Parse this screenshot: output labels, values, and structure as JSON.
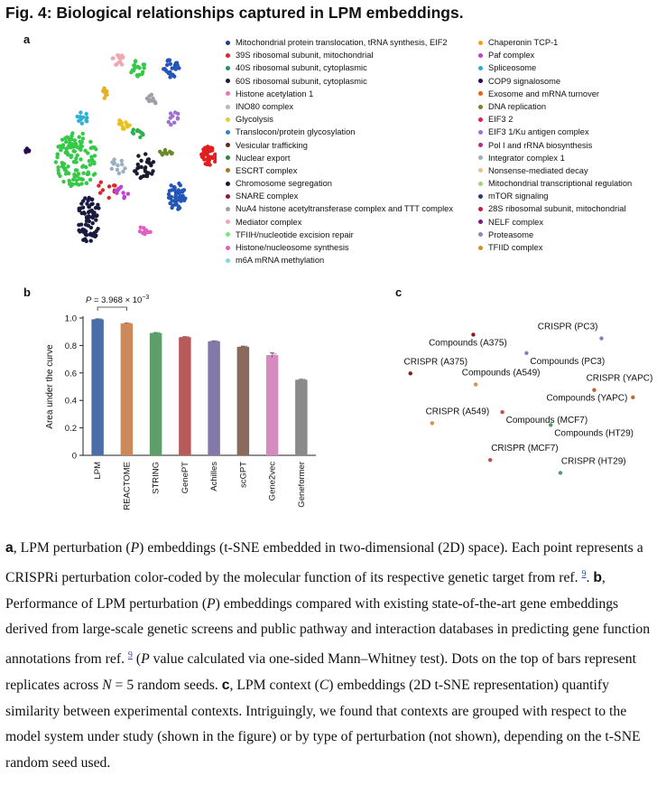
{
  "figure": {
    "title": "Fig. 4: Biological relationships captured in LPM embeddings."
  },
  "panel_labels": {
    "a": "a",
    "b": "b",
    "c": "c"
  },
  "legend_a": {
    "left": [
      {
        "label": "Mitochondrial protein translocation, tRNA synthesis, EIF2",
        "color": "#1f3d8a"
      },
      {
        "label": "39S ribosomal subunit, mitochondrial",
        "color": "#d8282a"
      },
      {
        "label": "40S ribosomal subunit, cytoplasmic",
        "color": "#2f8f5a"
      },
      {
        "label": "60S ribosomal subunit, cytoplasmic",
        "color": "#1a1a40"
      },
      {
        "label": "Histone acetylation 1",
        "color": "#e879a8"
      },
      {
        "label": "INO80 complex",
        "color": "#b8b8b8"
      },
      {
        "label": "Glycolysis",
        "color": "#d9d23c"
      },
      {
        "label": "Translocon/protein glycosylation",
        "color": "#3b7fc4"
      },
      {
        "label": "Vesicular trafficking",
        "color": "#5a2e1a"
      },
      {
        "label": "Nuclear export",
        "color": "#2a8a3c"
      },
      {
        "label": "ESCRT complex",
        "color": "#a07a2a"
      },
      {
        "label": "Chromosome segregation",
        "color": "#1b1b30"
      },
      {
        "label": "SNARE complex",
        "color": "#8a1a3a"
      },
      {
        "label": "NuA4 histone acetyltransferase complex and TTT complex",
        "color": "#9ea0a6"
      },
      {
        "label": "Mediator complex",
        "color": "#f0a8b0"
      },
      {
        "label": "TFIIH/nucleotide excision repair",
        "color": "#7fe07f"
      },
      {
        "label": "Histone/nucleosome synthesis",
        "color": "#e060c0"
      },
      {
        "label": "m6A mRNA methylation",
        "color": "#7fd8e8"
      }
    ],
    "right": [
      {
        "label": "Chaperonin TCP-1",
        "color": "#f2a020"
      },
      {
        "label": "Paf complex",
        "color": "#c040d0"
      },
      {
        "label": "Spliceosome",
        "color": "#2ab0c8"
      },
      {
        "label": "COP9 signalosome",
        "color": "#2a0a50"
      },
      {
        "label": "Exosome and mRNA turnover",
        "color": "#e8601a"
      },
      {
        "label": "DNA replication",
        "color": "#6a8a2a"
      },
      {
        "label": "EIF3 2",
        "color": "#e02050"
      },
      {
        "label": "EIF3 1/Ku antigen complex",
        "color": "#a070d0"
      },
      {
        "label": "Pol I and rRNA biosynthesis",
        "color": "#b0308a"
      },
      {
        "label": "Integrator complex 1",
        "color": "#9ab0c0"
      },
      {
        "label": "Nonsense-mediated decay",
        "color": "#e8c090"
      },
      {
        "label": "Mitochondrial transcriptional regulation",
        "color": "#a0d080"
      },
      {
        "label": "mTOR signaling",
        "color": "#2a3a7a"
      },
      {
        "label": "28S ribosomal subunit, mitochondrial",
        "color": "#c02040"
      },
      {
        "label": "NELF complex",
        "color": "#7a1a8a"
      },
      {
        "label": "Proteasome",
        "color": "#8a8ac0"
      },
      {
        "label": "TFIID complex",
        "color": "#d09030"
      }
    ]
  },
  "chart_data": [
    {
      "panel": "a",
      "type": "scatter",
      "title": "",
      "xlabel": "",
      "ylabel": "",
      "clusters": [
        {
          "color": "#36c948",
          "cx": 0.29,
          "cy": 0.55,
          "rx": 0.11,
          "ry": 0.13,
          "n": 120
        },
        {
          "color": "#e02020",
          "cx": 0.96,
          "cy": 0.53,
          "rx": 0.04,
          "ry": 0.045,
          "n": 45
        },
        {
          "color": "#2456b8",
          "cx": 0.8,
          "cy": 0.72,
          "rx": 0.045,
          "ry": 0.07,
          "n": 45
        },
        {
          "color": "#1a1a40",
          "cx": 0.35,
          "cy": 0.83,
          "rx": 0.06,
          "ry": 0.11,
          "n": 70
        },
        {
          "color": "#2456b8",
          "cx": 0.77,
          "cy": 0.12,
          "rx": 0.04,
          "ry": 0.05,
          "n": 25
        },
        {
          "color": "#36c948",
          "cx": 0.6,
          "cy": 0.12,
          "rx": 0.04,
          "ry": 0.04,
          "n": 18
        },
        {
          "color": "#f0a8b0",
          "cx": 0.5,
          "cy": 0.08,
          "rx": 0.03,
          "ry": 0.04,
          "n": 15
        },
        {
          "color": "#e8b020",
          "cx": 0.43,
          "cy": 0.25,
          "rx": 0.015,
          "ry": 0.05,
          "n": 8
        },
        {
          "color": "#30b0d0",
          "cx": 0.32,
          "cy": 0.35,
          "rx": 0.03,
          "ry": 0.03,
          "n": 12
        },
        {
          "color": "#e8c020",
          "cx": 0.53,
          "cy": 0.38,
          "rx": 0.03,
          "ry": 0.03,
          "n": 14
        },
        {
          "color": "#30b050",
          "cx": 0.6,
          "cy": 0.42,
          "rx": 0.03,
          "ry": 0.03,
          "n": 10
        },
        {
          "color": "#9ea0a6",
          "cx": 0.67,
          "cy": 0.27,
          "rx": 0.03,
          "ry": 0.03,
          "n": 12
        },
        {
          "color": "#1b1b30",
          "cx": 0.63,
          "cy": 0.58,
          "rx": 0.06,
          "ry": 0.06,
          "n": 30
        },
        {
          "color": "#9ab0c0",
          "cx": 0.5,
          "cy": 0.58,
          "rx": 0.04,
          "ry": 0.04,
          "n": 12
        },
        {
          "color": "#e060c0",
          "cx": 0.63,
          "cy": 0.88,
          "rx": 0.04,
          "ry": 0.02,
          "n": 10
        },
        {
          "color": "#6a8a2a",
          "cx": 0.74,
          "cy": 0.52,
          "rx": 0.035,
          "ry": 0.02,
          "n": 10
        },
        {
          "color": "#2a0a50",
          "cx": 0.04,
          "cy": 0.51,
          "rx": 0.015,
          "ry": 0.015,
          "n": 6
        },
        {
          "color": "#d8282a",
          "cx": 0.44,
          "cy": 0.68,
          "rx": 0.05,
          "ry": 0.05,
          "n": 10
        },
        {
          "color": "#c040d0",
          "cx": 0.52,
          "cy": 0.7,
          "rx": 0.04,
          "ry": 0.03,
          "n": 10
        },
        {
          "color": "#a070d0",
          "cx": 0.78,
          "cy": 0.35,
          "rx": 0.03,
          "ry": 0.04,
          "n": 10
        }
      ]
    },
    {
      "panel": "b",
      "type": "bar",
      "title": "",
      "xlabel": "",
      "ylabel": "Area under the curve",
      "ylim": [
        0,
        1.0
      ],
      "yticks": [
        "0",
        "0.2",
        "0.4",
        "0.6",
        "0.8",
        "1.0"
      ],
      "categories": [
        "LPM",
        "REACTOME",
        "STRING",
        "GenePT",
        "Achilles",
        "scGPT",
        "Gene2vec",
        "Geneformer"
      ],
      "values": [
        0.99,
        0.96,
        0.89,
        0.86,
        0.83,
        0.79,
        0.73,
        0.55
      ],
      "errors": [
        0.004,
        0.004,
        0.004,
        0.004,
        0.004,
        0.005,
        0.015,
        0.004
      ],
      "colors": [
        "#4a6fa8",
        "#cc8a5a",
        "#5e9e6a",
        "#b85a5a",
        "#8478a8",
        "#8a6a5a",
        "#d68bc0",
        "#8a8a8a"
      ],
      "annotation": {
        "prefix": "P",
        "value": " = 3.968 × 10",
        "exponent": "−3",
        "from": "LPM",
        "to": "REACTOME"
      }
    },
    {
      "panel": "c",
      "type": "scatter",
      "title": "",
      "xlabel": "",
      "ylabel": "",
      "points": [
        {
          "label": "Compounds (A375)",
          "color": "#8a1a1a",
          "x": 0.33,
          "y": 0.12,
          "label_side": "below-left"
        },
        {
          "label": "CRISPR (PC3)",
          "color": "#8a7ac0",
          "x": 0.86,
          "y": 0.14,
          "label_side": "above-left"
        },
        {
          "label": "Compounds (PC3)",
          "color": "#8a7ac0",
          "x": 0.55,
          "y": 0.22,
          "label_side": "right"
        },
        {
          "label": "CRISPR (A375)",
          "color": "#8a1a1a",
          "x": 0.07,
          "y": 0.33,
          "label_side": "above"
        },
        {
          "label": "Compounds (A549)",
          "color": "#d8904a",
          "x": 0.34,
          "y": 0.39,
          "label_side": "above"
        },
        {
          "label": "CRISPR (YAPC)",
          "color": "#b8683a",
          "x": 0.83,
          "y": 0.42,
          "label_side": "above"
        },
        {
          "label": "Compounds (YAPC)",
          "color": "#b8683a",
          "x": 0.99,
          "y": 0.46,
          "label_side": "left"
        },
        {
          "label": "Compounds (MCF7)",
          "color": "#c05050",
          "x": 0.45,
          "y": 0.54,
          "label_side": "right"
        },
        {
          "label": "CRISPR (A549)",
          "color": "#d8904a",
          "x": 0.16,
          "y": 0.6,
          "label_side": "above"
        },
        {
          "label": "Compounds (HT29)",
          "color": "#4aa060",
          "x": 0.65,
          "y": 0.61,
          "label_side": "right"
        },
        {
          "label": "CRISPR (MCF7)",
          "color": "#c05050",
          "x": 0.4,
          "y": 0.8,
          "label_side": "above-right"
        },
        {
          "label": "CRISPR (HT29)",
          "color": "#4aa060",
          "x": 0.69,
          "y": 0.87,
          "label_side": "above-right"
        }
      ]
    }
  ],
  "caption": {
    "a_label": "a",
    "a_text": ", LPM perturbation (",
    "a_p": "P",
    "a_text2": ") embeddings (t-SNE embedded in two-dimensional (2D) space). Each point represents a CRISPRi perturbation color-coded by the molecular function of its respective genetic target from ref. ",
    "ref1": "9",
    "a_end": ". ",
    "b_label": "b",
    "b_text": ", Performance of LPM perturbation (",
    "b_p": "P",
    "b_text2": ") embeddings compared with existing state-of-the-art gene embeddings derived from large-scale genetic screens and public pathway and interaction databases in predicting gene function annotations from ref. ",
    "ref2": "9",
    "b_text3": " (",
    "b_p2": "P",
    "b_text4": " value calculated via one-sided Mann–Whitney test). Dots on the top of bars represent replicates across ",
    "b_n": "N",
    "b_text5": " = 5 random seeds. ",
    "c_label": "c",
    "c_text": ", LPM context (",
    "c_c": "C",
    "c_text2": ") embeddings (2D t-SNE representation) quantify similarity between experimental contexts. Intriguingly, we found that contexts are grouped with respect to the model system under study (shown in the figure) or by type of perturbation (not shown), depending on the t-SNE random seed used."
  }
}
